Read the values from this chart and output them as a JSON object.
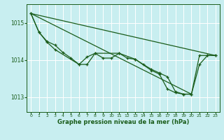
{
  "background_color": "#c8eef0",
  "plot_bg_color": "#c8eef0",
  "grid_color": "#ffffff",
  "line_color": "#1a5c1a",
  "xlabel": "Graphe pression niveau de la mer (hPa)",
  "xlim": [
    -0.5,
    23.5
  ],
  "ylim": [
    1012.6,
    1015.5
  ],
  "yticks": [
    1013,
    1014,
    1015
  ],
  "xticks": [
    0,
    1,
    2,
    3,
    4,
    5,
    6,
    7,
    8,
    9,
    10,
    11,
    12,
    13,
    14,
    15,
    16,
    17,
    18,
    19,
    20,
    21,
    22,
    23
  ],
  "series1_x": [
    0,
    1,
    2,
    3,
    4,
    5,
    6,
    7,
    8,
    9,
    10,
    11,
    12,
    13,
    14,
    15,
    16,
    17,
    18,
    19,
    20,
    21,
    22,
    23
  ],
  "series1_y": [
    1015.25,
    1014.75,
    1014.5,
    1014.4,
    1014.2,
    1014.05,
    1013.88,
    1014.08,
    1014.18,
    1014.05,
    1014.05,
    1014.18,
    1014.05,
    1014.02,
    1013.88,
    1013.75,
    1013.65,
    1013.55,
    1013.15,
    1013.08,
    1013.08,
    1014.12,
    1014.12,
    1014.12
  ],
  "series2_x": [
    0,
    1,
    2,
    3,
    6,
    7,
    8,
    11,
    13,
    15,
    16,
    17,
    18,
    19,
    20,
    21,
    22,
    23
  ],
  "series2_y": [
    1015.25,
    1014.75,
    1014.48,
    1014.28,
    1013.88,
    1013.88,
    1014.18,
    1014.18,
    1014.02,
    1013.72,
    1013.62,
    1013.22,
    1013.12,
    1013.08,
    1013.08,
    1013.88,
    1014.12,
    1014.12
  ],
  "line1_x": [
    0,
    23
  ],
  "line1_y": [
    1015.25,
    1014.12
  ],
  "line2_x": [
    0,
    20
  ],
  "line2_y": [
    1015.25,
    1013.08
  ]
}
